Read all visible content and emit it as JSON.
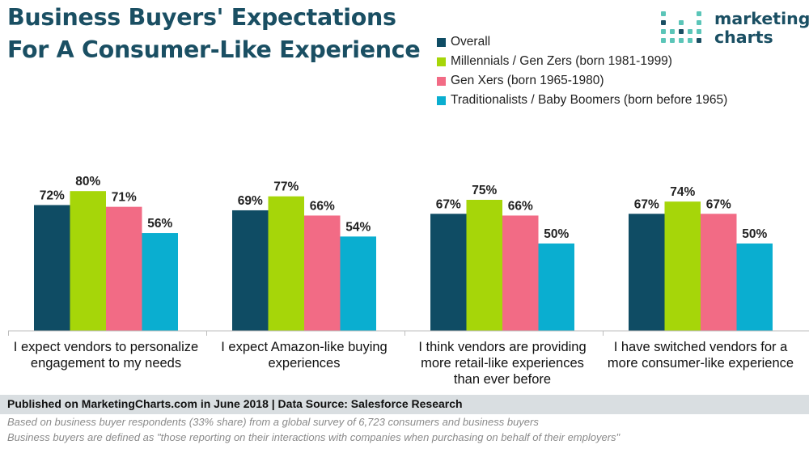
{
  "title": {
    "line1": "Business Buyers' Expectations",
    "line2": "For A Consumer-Like Experience"
  },
  "logo": {
    "line1": "marketing",
    "line2": "charts",
    "colors": [
      "#5bc5b8",
      "#1a4f63"
    ]
  },
  "legend": [
    {
      "label": "Overall",
      "color": "#0f4c64"
    },
    {
      "label": "Millennials / Gen Zers (born 1981-1999)",
      "color": "#a6d609"
    },
    {
      "label": "Gen Xers (born 1965-1980)",
      "color": "#f26b85"
    },
    {
      "label": "Traditionalists / Baby Boomers (born before 1965)",
      "color": "#0aaed0"
    }
  ],
  "chart_data": {
    "type": "bar",
    "categories": [
      "I expect vendors to personalize engagement to my needs",
      "I expect Amazon-like buying experiences",
      "I think vendors are providing more retail-like experiences than ever before",
      "I have switched vendors for a more consumer-like experience"
    ],
    "category_lines": [
      [
        "I expect vendors to personalize",
        "engagement to my needs"
      ],
      [
        "I expect Amazon-like buying",
        "experiences"
      ],
      [
        "I think vendors are providing",
        "more retail-like experiences",
        "than ever before"
      ],
      [
        "I have switched vendors for a",
        "more consumer-like experience"
      ]
    ],
    "series": [
      {
        "name": "Overall",
        "values": [
          72,
          69,
          67,
          67
        ],
        "color": "#0f4c64"
      },
      {
        "name": "Millennials / Gen Zers (born 1981-1999)",
        "values": [
          80,
          77,
          75,
          74
        ],
        "color": "#a6d609"
      },
      {
        "name": "Gen Xers (born 1965-1980)",
        "values": [
          71,
          66,
          66,
          67
        ],
        "color": "#f26b85"
      },
      {
        "name": "Traditionalists / Baby Boomers (born before 1965)",
        "values": [
          56,
          54,
          50,
          50
        ],
        "color": "#0aaed0"
      }
    ],
    "value_suffix": "%",
    "ylim": [
      0,
      100
    ],
    "grid": false,
    "legend_position": "top-right"
  },
  "footer": {
    "source": "Published on MarketingCharts.com in June 2018 | Data Source: Salesforce Research",
    "note1": "Based on business buyer respondents (33% share) from a global survey of 6,723 consumers and business buyers",
    "note2": "Business buyers are defined as \"those reporting on their interactions with companies when purchasing on behalf of their employers\""
  }
}
